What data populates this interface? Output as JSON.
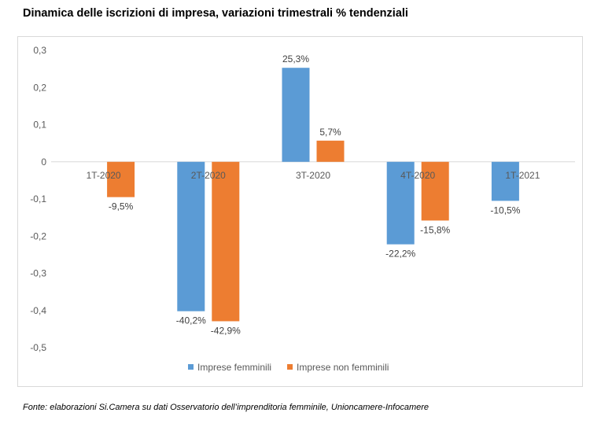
{
  "title": "Dinamica delle iscrizioni di impresa, variazioni trimestrali % tendenziali",
  "source": "Fonte: elaborazioni Si.Camera su dati Osservatorio dell’imprenditoria femminile, Unioncamere-Infocamere",
  "chart_data": {
    "type": "bar",
    "categories": [
      "1T-2020",
      "2T-2020",
      "3T-2020",
      "4T-2020",
      "1T-2021"
    ],
    "series": [
      {
        "name": "Imprese femminili",
        "color": "#5b9bd5",
        "values": [
          null,
          -0.402,
          0.253,
          -0.222,
          -0.105
        ],
        "labels": [
          null,
          "-40,2%",
          "25,3%",
          "-22,2%",
          "-10,5%"
        ]
      },
      {
        "name": "Imprese non femminili",
        "color": "#ed7d31",
        "values": [
          -0.095,
          -0.429,
          0.057,
          -0.158,
          null
        ],
        "labels": [
          "-9,5%",
          "-42,9%",
          "5,7%",
          "-15,8%",
          null
        ]
      }
    ],
    "yticks": [
      "0,3",
      "0,2",
      "0,1",
      "0",
      "-0,1",
      "-0,2",
      "-0,3",
      "-0,4",
      "-0,5"
    ],
    "ytick_values": [
      0.3,
      0.2,
      0.1,
      0,
      -0.1,
      -0.2,
      -0.3,
      -0.4,
      -0.5
    ],
    "ylim": [
      -0.5,
      0.3
    ],
    "grid": false,
    "legend_position": "bottom"
  }
}
